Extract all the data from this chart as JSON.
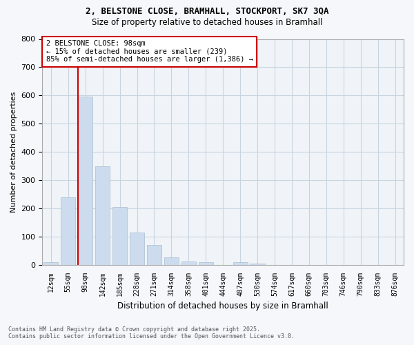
{
  "title_line1": "2, BELSTONE CLOSE, BRAMHALL, STOCKPORT, SK7 3QA",
  "title_line2": "Size of property relative to detached houses in Bramhall",
  "xlabel": "Distribution of detached houses by size in Bramhall",
  "ylabel": "Number of detached properties",
  "categories": [
    "12sqm",
    "55sqm",
    "98sqm",
    "142sqm",
    "185sqm",
    "228sqm",
    "271sqm",
    "314sqm",
    "358sqm",
    "401sqm",
    "444sqm",
    "487sqm",
    "530sqm",
    "574sqm",
    "617sqm",
    "660sqm",
    "703sqm",
    "746sqm",
    "790sqm",
    "833sqm",
    "876sqm"
  ],
  "values": [
    8,
    240,
    595,
    350,
    205,
    115,
    70,
    25,
    12,
    10,
    0,
    8,
    5,
    0,
    0,
    0,
    0,
    0,
    0,
    0,
    0
  ],
  "bar_color": "#ccdcee",
  "bar_edge_color": "#aabcce",
  "vline_index": 2,
  "vline_color": "#cc0000",
  "ylim": [
    0,
    800
  ],
  "yticks": [
    0,
    100,
    200,
    300,
    400,
    500,
    600,
    700,
    800
  ],
  "annotation_title": "2 BELSTONE CLOSE: 98sqm",
  "annotation_line1": "← 15% of detached houses are smaller (239)",
  "annotation_line2": "85% of semi-detached houses are larger (1,386) →",
  "annotation_box_edgecolor": "#cc0000",
  "annotation_box_facecolor": "#ffffff",
  "footer_line1": "Contains HM Land Registry data © Crown copyright and database right 2025.",
  "footer_line2": "Contains public sector information licensed under the Open Government Licence v3.0.",
  "background_color": "#f5f7fa",
  "plot_background": "#f0f4f8",
  "grid_color": "#c8d4e0",
  "title_fontsize": 9,
  "subtitle_fontsize": 8.5
}
